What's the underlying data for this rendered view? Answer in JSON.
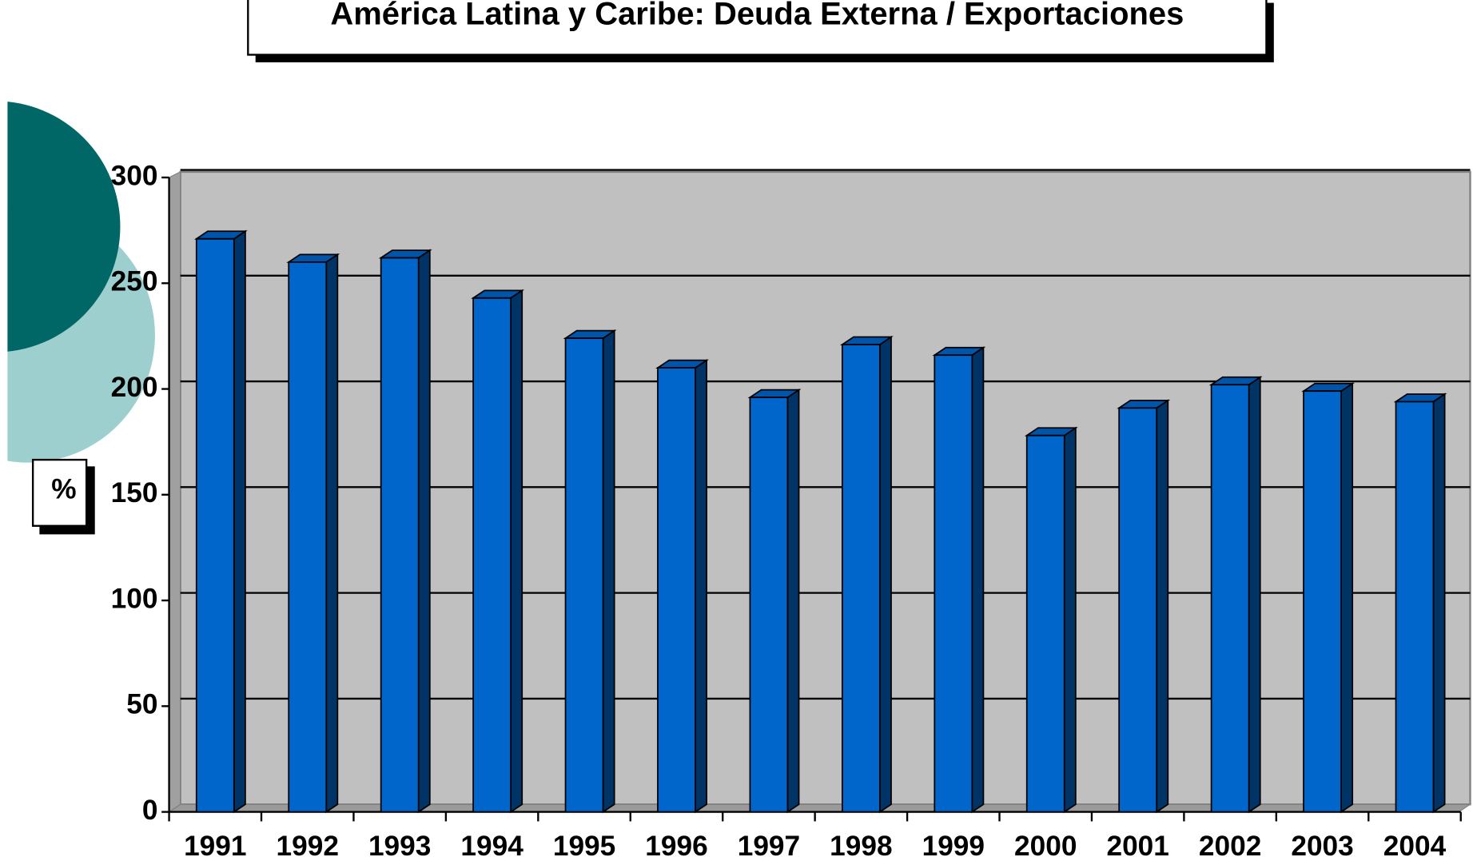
{
  "chart_data": {
    "type": "bar",
    "title": "América Latina y Caribe: Deuda Externa / Exportaciones",
    "y_label": "%",
    "categories": [
      "1991",
      "1992",
      "1993",
      "1994",
      "1995",
      "1996",
      "1997",
      "1998",
      "1999",
      "2000",
      "2001",
      "2002",
      "2003",
      "2004"
    ],
    "values": [
      271,
      260,
      262,
      243,
      224,
      210,
      196,
      221,
      216,
      178,
      191,
      202,
      199,
      194
    ],
    "color": "#0066cc",
    "ylim": [
      0,
      300
    ],
    "yticks": [
      0,
      50,
      100,
      150,
      200,
      250,
      300
    ],
    "grid": true
  }
}
